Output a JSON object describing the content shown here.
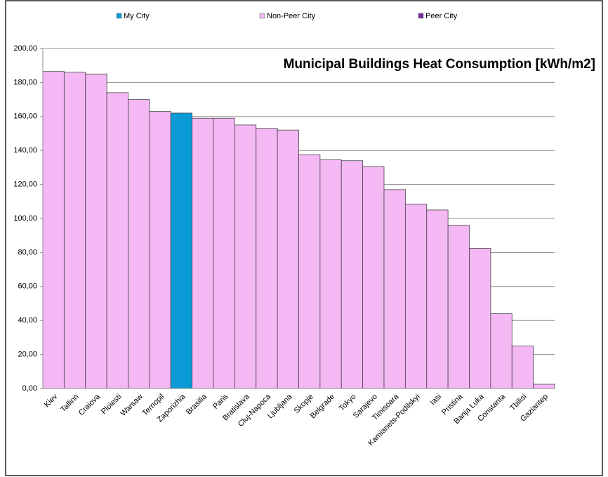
{
  "chart_data": {
    "type": "bar",
    "title": "Municipal Buildings Heat Consumption [kWh/m2]",
    "categories": [
      "Kiev",
      "Tallinn",
      "Craiova",
      "Ploiesti",
      "Warsaw",
      "Ternopil",
      "Zaporizhia",
      "Brasilia",
      "Paris",
      "Bratislava",
      "Cluj-Napoca",
      "Ljubljana",
      "Skopje",
      "Belgrade",
      "Tokyo",
      "Sarajevo",
      "Timisoara",
      "Kamianets-Podilskyi",
      "Iasi",
      "Pristina",
      "Banja Luka",
      "Constanta",
      "Tbilisi",
      "Gaziantep"
    ],
    "series": [
      {
        "name": "My City",
        "color": "#0a9ad6",
        "values": [
          null,
          null,
          null,
          null,
          null,
          null,
          162,
          null,
          null,
          null,
          null,
          null,
          null,
          null,
          null,
          null,
          null,
          null,
          null,
          null,
          null,
          null,
          null,
          null
        ]
      },
      {
        "name": "Non-Peer City",
        "color": "#f4b8f4",
        "values": [
          186.5,
          186,
          185,
          174,
          170,
          163,
          null,
          159,
          159,
          155,
          153,
          152,
          137.5,
          134.5,
          134,
          130.5,
          117,
          108.5,
          105,
          96,
          82.5,
          44,
          25,
          2.5
        ]
      },
      {
        "name": "Peer City",
        "color": "#7030a0",
        "values": [
          null,
          null,
          null,
          null,
          null,
          null,
          null,
          null,
          null,
          null,
          null,
          null,
          null,
          null,
          null,
          null,
          null,
          null,
          null,
          null,
          null,
          null,
          null,
          null
        ]
      }
    ],
    "ylim": [
      0,
      200
    ],
    "yticks": [
      {
        "value": 0,
        "label": "0,00"
      },
      {
        "value": 20,
        "label": "20,00"
      },
      {
        "value": 40,
        "label": "40,00"
      },
      {
        "value": 60,
        "label": "60,00"
      },
      {
        "value": 80,
        "label": "80,00"
      },
      {
        "value": 100,
        "label": "100,00"
      },
      {
        "value": 120,
        "label": "120,00"
      },
      {
        "value": 140,
        "label": "140,00"
      },
      {
        "value": 160,
        "label": "160,00"
      },
      {
        "value": 180,
        "label": "180,00"
      },
      {
        "value": 200,
        "label": "200,00"
      }
    ],
    "grid": true
  }
}
